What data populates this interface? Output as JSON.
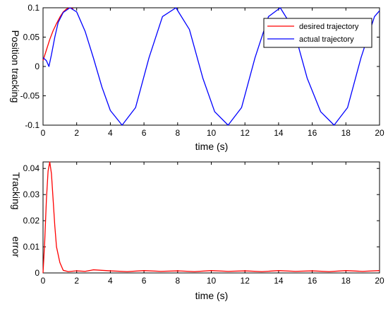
{
  "chart_data": [
    {
      "type": "line",
      "xlabel": "time (s)",
      "ylabel": "Position tracking",
      "xlim": [
        0,
        20
      ],
      "ylim": [
        -0.1,
        0.1
      ],
      "xticks": [
        0,
        2,
        4,
        6,
        8,
        10,
        12,
        14,
        16,
        18,
        20
      ],
      "yticks": [
        -0.1,
        -0.05,
        0,
        0.05,
        0.1
      ],
      "xtick_labels": [
        "0",
        "2",
        "4",
        "6",
        "8",
        "10",
        "12",
        "14",
        "16",
        "18",
        "20"
      ],
      "ytick_labels": [
        "-0.1",
        "-0.05",
        "0",
        "0.05",
        "0.1"
      ],
      "grid": false,
      "legend": {
        "placement": "top-right"
      },
      "series": [
        {
          "name": "desired trajectory",
          "color": "#ff0000",
          "x": [
            0,
            0.2,
            0.4,
            0.6,
            0.8,
            1.0,
            1.2,
            1.4,
            1.6,
            1.8
          ],
          "y": [
            0.01,
            0.028,
            0.046,
            0.061,
            0.073,
            0.084,
            0.093,
            0.098,
            0.1,
            0.098
          ]
        },
        {
          "name": "actual trajectory",
          "color": "#0000ff",
          "x": [
            0,
            0.2,
            0.35,
            0.5,
            0.7,
            0.9,
            1.2,
            1.6,
            2.0,
            2.5,
            3.0,
            3.5,
            4.0,
            4.7,
            5.5,
            6.3,
            7.1,
            7.9,
            8.7,
            9.5,
            10.2,
            11.0,
            11.8,
            12.6,
            13.4,
            14.1,
            14.9,
            15.7,
            16.5,
            17.3,
            18.1,
            18.9,
            19.7,
            20.0
          ],
          "y": [
            0.015,
            0.01,
            0.0,
            0.02,
            0.05,
            0.075,
            0.092,
            0.1,
            0.093,
            0.06,
            0.014,
            -0.035,
            -0.075,
            -0.1,
            -0.07,
            0.015,
            0.085,
            0.1,
            0.063,
            -0.02,
            -0.077,
            -0.1,
            -0.07,
            0.015,
            0.085,
            0.1,
            0.063,
            -0.02,
            -0.077,
            -0.1,
            -0.07,
            0.015,
            0.085,
            0.095
          ]
        }
      ]
    },
    {
      "type": "line",
      "xlabel": "time (s)",
      "ylabel_lines": [
        "Tracking",
        "error"
      ],
      "xlim": [
        0,
        20
      ],
      "ylim": [
        0,
        0.0425
      ],
      "xticks": [
        0,
        2,
        4,
        6,
        8,
        10,
        12,
        14,
        16,
        18,
        20
      ],
      "yticks": [
        0,
        0.01,
        0.02,
        0.03,
        0.04
      ],
      "xtick_labels": [
        "0",
        "2",
        "4",
        "6",
        "8",
        "10",
        "12",
        "14",
        "16",
        "18",
        "20"
      ],
      "ytick_labels": [
        "0",
        "0.01",
        "0.02",
        "0.03",
        "0.04"
      ],
      "grid": false,
      "series": [
        {
          "color": "#ff0000",
          "x": [
            0,
            0.1,
            0.2,
            0.3,
            0.4,
            0.5,
            0.6,
            0.7,
            0.8,
            1.0,
            1.2,
            1.5,
            2.0,
            2.5,
            3.0,
            4.0,
            5.0,
            6.0,
            7.0,
            8.0,
            9.0,
            10.0,
            11.0,
            12.0,
            13.0,
            14.0,
            15.0,
            16.0,
            17.0,
            18.0,
            19.0,
            20.0
          ],
          "y": [
            0.0,
            0.012,
            0.028,
            0.039,
            0.0425,
            0.038,
            0.028,
            0.018,
            0.01,
            0.004,
            0.001,
            0.0005,
            0.0008,
            0.0006,
            0.0012,
            0.0008,
            0.0005,
            0.0009,
            0.0006,
            0.0008,
            0.0005,
            0.0009,
            0.0006,
            0.0008,
            0.0005,
            0.0009,
            0.0006,
            0.0008,
            0.0005,
            0.0009,
            0.0006,
            0.0009
          ]
        }
      ]
    }
  ]
}
